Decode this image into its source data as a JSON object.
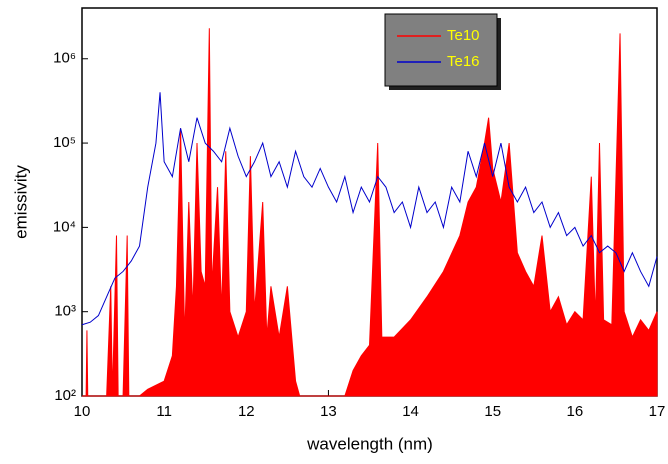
{
  "chart_data": {
    "type": "line",
    "xlabel": "wavelength (nm)",
    "ylabel": "emissivity",
    "xlim": [
      10,
      17
    ],
    "ylim": [
      100,
      4000000
    ],
    "log_y": true,
    "xticks": [
      10,
      11,
      12,
      13,
      14,
      15,
      16,
      17
    ],
    "yticks": [
      {
        "value": 100,
        "label": "10²"
      },
      {
        "value": 1000,
        "label": "10³"
      },
      {
        "value": 10000,
        "label": "10⁴"
      },
      {
        "value": 100000,
        "label": "10⁵"
      },
      {
        "value": 1000000,
        "label": "10⁶"
      }
    ],
    "legend": "upper right",
    "series": [
      {
        "name": "Te10",
        "color": "#ff0000",
        "filled": true,
        "x": [
          10.0,
          10.05,
          10.06,
          10.07,
          10.3,
          10.35,
          10.37,
          10.42,
          10.44,
          10.5,
          10.55,
          10.57,
          10.7,
          10.8,
          11.0,
          11.1,
          11.15,
          11.2,
          11.25,
          11.3,
          11.35,
          11.4,
          11.45,
          11.5,
          11.55,
          11.58,
          11.65,
          11.7,
          11.75,
          11.8,
          11.9,
          12.0,
          12.05,
          12.1,
          12.2,
          12.25,
          12.3,
          12.4,
          12.5,
          12.6,
          12.65,
          13.0,
          13.2,
          13.3,
          13.4,
          13.5,
          13.6,
          13.65,
          13.8,
          14.0,
          14.2,
          14.4,
          14.6,
          14.7,
          14.8,
          14.9,
          14.95,
          15.0,
          15.1,
          15.2,
          15.3,
          15.4,
          15.5,
          15.6,
          15.7,
          15.8,
          15.9,
          16.0,
          16.1,
          16.2,
          16.25,
          16.3,
          16.35,
          16.45,
          16.55,
          16.6,
          16.7,
          16.8,
          16.9,
          17.0
        ],
        "values": [
          100,
          100,
          600,
          100,
          100,
          2000,
          100,
          8000,
          100,
          100,
          8000,
          100,
          100,
          120,
          150,
          300,
          2000,
          150000,
          500,
          20000,
          1000,
          100000,
          3000,
          2000,
          2300000,
          2000,
          30000,
          1000,
          80000,
          1000,
          500,
          1000,
          70000,
          1000,
          20000,
          500,
          2000,
          500,
          2000,
          150,
          100,
          100,
          100,
          200,
          300,
          400,
          100000,
          500,
          500,
          800,
          1500,
          3000,
          8000,
          20000,
          30000,
          100000,
          200000,
          50000,
          20000,
          100000,
          5000,
          3000,
          2000,
          8000,
          1000,
          1500,
          700,
          1000,
          800,
          40000,
          800,
          100000,
          800,
          700,
          2000000,
          1000,
          500,
          800,
          600,
          1000
        ]
      },
      {
        "name": "Te16",
        "color": "#0000cc",
        "x": [
          10.0,
          10.1,
          10.2,
          10.3,
          10.4,
          10.5,
          10.6,
          10.7,
          10.8,
          10.9,
          10.95,
          11.0,
          11.1,
          11.2,
          11.3,
          11.4,
          11.5,
          11.6,
          11.7,
          11.8,
          11.9,
          12.0,
          12.1,
          12.2,
          12.3,
          12.4,
          12.5,
          12.6,
          12.7,
          12.8,
          12.9,
          13.0,
          13.1,
          13.2,
          13.3,
          13.4,
          13.5,
          13.6,
          13.7,
          13.8,
          13.9,
          14.0,
          14.1,
          14.2,
          14.3,
          14.4,
          14.5,
          14.6,
          14.7,
          14.8,
          14.9,
          15.0,
          15.1,
          15.2,
          15.3,
          15.4,
          15.5,
          15.6,
          15.7,
          15.8,
          15.9,
          16.0,
          16.1,
          16.2,
          16.3,
          16.4,
          16.5,
          16.6,
          16.7,
          16.8,
          16.9,
          17.0
        ],
        "values": [
          700,
          750,
          900,
          1500,
          2500,
          3000,
          4000,
          6000,
          30000,
          100000,
          400000,
          60000,
          40000,
          150000,
          60000,
          200000,
          100000,
          80000,
          60000,
          150000,
          70000,
          40000,
          60000,
          100000,
          40000,
          60000,
          30000,
          80000,
          40000,
          30000,
          50000,
          30000,
          20000,
          40000,
          15000,
          30000,
          20000,
          40000,
          30000,
          15000,
          20000,
          10000,
          30000,
          15000,
          20000,
          10000,
          30000,
          20000,
          80000,
          40000,
          100000,
          40000,
          100000,
          30000,
          20000,
          30000,
          15000,
          20000,
          10000,
          15000,
          8000,
          10000,
          6000,
          8000,
          5000,
          6000,
          5000,
          3000,
          5000,
          3000,
          2000,
          4500
        ]
      }
    ]
  }
}
